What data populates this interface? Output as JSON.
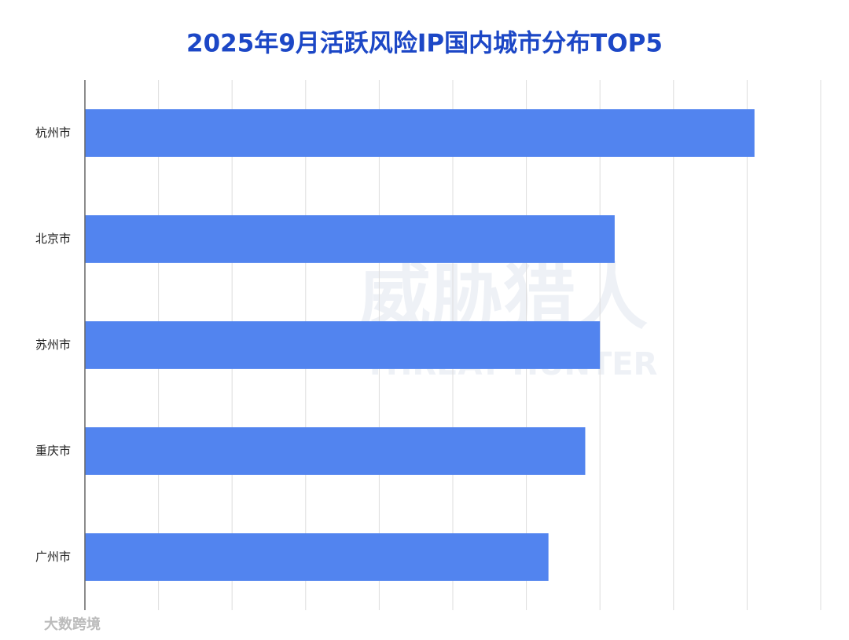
{
  "chart_data": {
    "type": "hbar",
    "title": "2025年9月活跃风险IP国内城市分布TOP5",
    "categories": [
      "杭州市",
      "北京市",
      "苏州市",
      "重庆市",
      "广州市"
    ],
    "values": [
      9.1,
      7.2,
      7.0,
      6.8,
      6.3
    ],
    "color": "#5284ef",
    "xlim": [
      0,
      10
    ],
    "xticks": [
      0,
      1,
      2,
      3,
      4,
      5,
      6,
      7,
      8,
      9,
      10
    ],
    "grid": true,
    "watermark": [
      "威胁猎人",
      "THREAT HUNTER"
    ],
    "source": "大数跨境"
  }
}
